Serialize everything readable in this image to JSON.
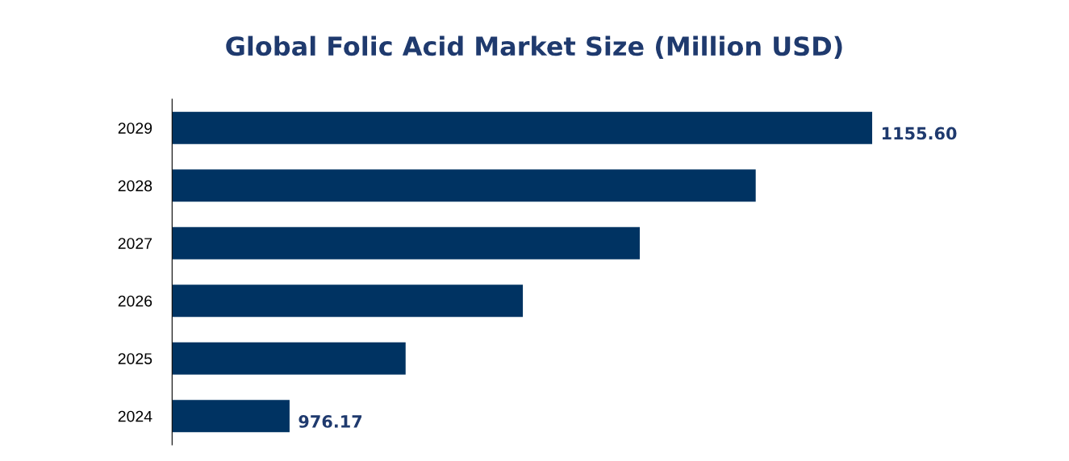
{
  "chart_data": {
    "type": "bar",
    "orientation": "horizontal",
    "title": "Global Folic Acid Market Size (Million USD)",
    "categories": [
      "2029",
      "2028",
      "2027",
      "2026",
      "2025",
      "2024"
    ],
    "values": [
      1155.6,
      1119.7,
      1084.0,
      1048.0,
      1011.9,
      976.17
    ],
    "value_labels": [
      "1155.60",
      null,
      null,
      null,
      null,
      "976.17"
    ],
    "color": "#003362",
    "xlim": [
      940,
      1155.6
    ],
    "tick_labels": "y",
    "grid": false,
    "legend": false
  }
}
